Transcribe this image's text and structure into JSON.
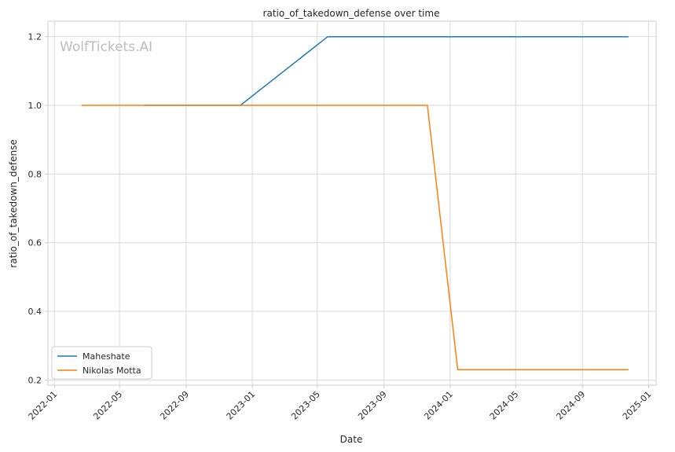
{
  "chart_data": {
    "type": "line",
    "title": "ratio_of_takedown_defense over time",
    "xlabel": "Date",
    "ylabel": "ratio_of_takedown_defense",
    "watermark": "WolfTickets.AI",
    "x_axis_kind": "date",
    "xlim": [
      "2021-12-20",
      "2025-01-15"
    ],
    "ylim": [
      0.185,
      1.245
    ],
    "x_ticks": [
      "2022-01",
      "2022-05",
      "2022-09",
      "2023-01",
      "2023-05",
      "2023-09",
      "2024-01",
      "2024-05",
      "2024-09",
      "2025-01"
    ],
    "y_ticks": [
      0.2,
      0.4,
      0.6,
      0.8,
      1.0,
      1.2
    ],
    "y_tick_labels": [
      "0.2",
      "0.4",
      "0.6",
      "0.8",
      "1.0",
      "1.2"
    ],
    "grid": true,
    "legend_position": "lower-left",
    "series": [
      {
        "name": "Maheshate",
        "color": "#1f77b4",
        "points": [
          {
            "x": "2022-06-15",
            "y": 1.0
          },
          {
            "x": "2022-12-10",
            "y": 1.0
          },
          {
            "x": "2023-05-20",
            "y": 1.2
          },
          {
            "x": "2024-11-25",
            "y": 1.2
          }
        ]
      },
      {
        "name": "Nikolas Motta",
        "color": "#ff7f0e",
        "points": [
          {
            "x": "2022-02-20",
            "y": 1.0
          },
          {
            "x": "2023-11-20",
            "y": 1.0
          },
          {
            "x": "2024-01-15",
            "y": 0.23
          },
          {
            "x": "2024-11-25",
            "y": 0.23
          }
        ]
      }
    ]
  }
}
